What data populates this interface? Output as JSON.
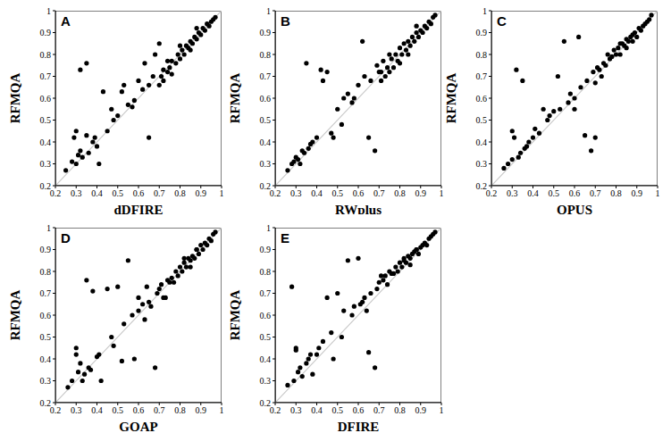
{
  "chart_data": [
    {
      "type": "scatter",
      "panel_label": "A",
      "x_label": "dDFIRE",
      "y_label": "RFMQA",
      "color": "#000000",
      "marker": "circle",
      "xlim": [
        0.2,
        1
      ],
      "ylim": [
        0.2,
        1
      ],
      "xticks": [
        0.2,
        0.3,
        0.4,
        0.5,
        0.6,
        0.7,
        0.8,
        0.9,
        1
      ],
      "yticks": [
        0.2,
        0.3,
        0.4,
        0.5,
        0.6,
        0.7,
        0.8,
        0.9,
        1
      ],
      "x": [
        0.25,
        0.28,
        0.3,
        0.31,
        0.32,
        0.33,
        0.35,
        0.36,
        0.38,
        0.4,
        0.29,
        0.3,
        0.32,
        0.35,
        0.39,
        0.41,
        0.43,
        0.45,
        0.47,
        0.48,
        0.5,
        0.52,
        0.53,
        0.55,
        0.57,
        0.58,
        0.6,
        0.62,
        0.63,
        0.65,
        0.65,
        0.67,
        0.68,
        0.7,
        0.71,
        0.72,
        0.74,
        0.75,
        0.76,
        0.78,
        0.79,
        0.8,
        0.81,
        0.82,
        0.83,
        0.84,
        0.85,
        0.86,
        0.87,
        0.88,
        0.89,
        0.9,
        0.91,
        0.92,
        0.93,
        0.94,
        0.95,
        0.96,
        0.97,
        0.72,
        0.76,
        0.8,
        0.85,
        0.88,
        0.7,
        0.74
      ],
      "values": [
        0.27,
        0.31,
        0.3,
        0.34,
        0.73,
        0.33,
        0.76,
        0.35,
        0.4,
        0.38,
        0.42,
        0.45,
        0.36,
        0.43,
        0.42,
        0.3,
        0.63,
        0.45,
        0.55,
        0.5,
        0.52,
        0.63,
        0.66,
        0.57,
        0.56,
        0.59,
        0.68,
        0.64,
        0.76,
        0.42,
        0.66,
        0.7,
        0.8,
        0.85,
        0.7,
        0.73,
        0.72,
        0.74,
        0.77,
        0.76,
        0.8,
        0.78,
        0.82,
        0.8,
        0.84,
        0.83,
        0.86,
        0.85,
        0.88,
        0.87,
        0.9,
        0.89,
        0.92,
        0.91,
        0.94,
        0.93,
        0.95,
        0.96,
        0.97,
        0.68,
        0.71,
        0.84,
        0.82,
        0.92,
        0.66,
        0.77
      ]
    },
    {
      "type": "scatter",
      "panel_label": "B",
      "x_label": "RWplus",
      "y_label": "RFMQA",
      "color": "#000000",
      "marker": "circle",
      "xlim": [
        0.2,
        1
      ],
      "ylim": [
        0.2,
        1
      ],
      "xticks": [
        0.2,
        0.3,
        0.4,
        0.5,
        0.6,
        0.7,
        0.8,
        0.9,
        1
      ],
      "yticks": [
        0.2,
        0.3,
        0.4,
        0.5,
        0.6,
        0.7,
        0.8,
        0.9,
        1
      ],
      "x": [
        0.26,
        0.28,
        0.3,
        0.31,
        0.33,
        0.35,
        0.36,
        0.38,
        0.4,
        0.42,
        0.29,
        0.32,
        0.34,
        0.37,
        0.43,
        0.45,
        0.47,
        0.48,
        0.5,
        0.52,
        0.53,
        0.55,
        0.57,
        0.58,
        0.6,
        0.62,
        0.63,
        0.65,
        0.66,
        0.68,
        0.69,
        0.7,
        0.71,
        0.72,
        0.74,
        0.75,
        0.76,
        0.78,
        0.79,
        0.8,
        0.81,
        0.82,
        0.83,
        0.84,
        0.85,
        0.86,
        0.87,
        0.88,
        0.89,
        0.9,
        0.91,
        0.92,
        0.93,
        0.94,
        0.95,
        0.96,
        0.97,
        0.73,
        0.77,
        0.8,
        0.84,
        0.88,
        0.71,
        0.75
      ],
      "values": [
        0.27,
        0.3,
        0.33,
        0.32,
        0.36,
        0.76,
        0.37,
        0.4,
        0.42,
        0.73,
        0.31,
        0.3,
        0.35,
        0.39,
        0.68,
        0.72,
        0.44,
        0.42,
        0.55,
        0.48,
        0.6,
        0.62,
        0.58,
        0.6,
        0.66,
        0.86,
        0.7,
        0.42,
        0.68,
        0.36,
        0.75,
        0.72,
        0.72,
        0.77,
        0.74,
        0.8,
        0.78,
        0.8,
        0.77,
        0.83,
        0.8,
        0.85,
        0.82,
        0.86,
        0.84,
        0.88,
        0.86,
        0.9,
        0.88,
        0.91,
        0.9,
        0.93,
        0.92,
        0.95,
        0.94,
        0.97,
        0.98,
        0.7,
        0.74,
        0.76,
        0.8,
        0.93,
        0.68,
        0.72
      ]
    },
    {
      "type": "scatter",
      "panel_label": "C",
      "x_label": "OPUS",
      "y_label": "RFMQA",
      "color": "#000000",
      "marker": "circle",
      "xlim": [
        0.2,
        1
      ],
      "ylim": [
        0.2,
        1
      ],
      "xticks": [
        0.2,
        0.3,
        0.4,
        0.5,
        0.6,
        0.7,
        0.8,
        0.9,
        1
      ],
      "yticks": [
        0.2,
        0.3,
        0.4,
        0.5,
        0.6,
        0.7,
        0.8,
        0.9,
        1
      ],
      "x": [
        0.26,
        0.28,
        0.3,
        0.31,
        0.32,
        0.33,
        0.35,
        0.36,
        0.38,
        0.4,
        0.3,
        0.34,
        0.37,
        0.41,
        0.43,
        0.45,
        0.47,
        0.48,
        0.5,
        0.52,
        0.53,
        0.55,
        0.57,
        0.58,
        0.6,
        0.62,
        0.63,
        0.65,
        0.66,
        0.68,
        0.69,
        0.7,
        0.71,
        0.72,
        0.74,
        0.75,
        0.76,
        0.78,
        0.79,
        0.8,
        0.81,
        0.82,
        0.83,
        0.84,
        0.85,
        0.86,
        0.87,
        0.88,
        0.89,
        0.9,
        0.91,
        0.92,
        0.93,
        0.94,
        0.95,
        0.96,
        0.97,
        0.73,
        0.77,
        0.82,
        0.85,
        0.88,
        0.7,
        0.6
      ],
      "values": [
        0.28,
        0.3,
        0.45,
        0.42,
        0.73,
        0.33,
        0.68,
        0.37,
        0.4,
        0.42,
        0.32,
        0.35,
        0.38,
        0.46,
        0.44,
        0.55,
        0.5,
        0.52,
        0.54,
        0.7,
        0.55,
        0.86,
        0.58,
        0.62,
        0.6,
        0.88,
        0.65,
        0.43,
        0.68,
        0.36,
        0.72,
        0.42,
        0.74,
        0.73,
        0.76,
        0.75,
        0.8,
        0.79,
        0.82,
        0.8,
        0.83,
        0.8,
        0.85,
        0.84,
        0.87,
        0.86,
        0.88,
        0.89,
        0.9,
        0.88,
        0.92,
        0.91,
        0.93,
        0.94,
        0.95,
        0.96,
        0.98,
        0.7,
        0.78,
        0.85,
        0.83,
        0.86,
        0.67,
        0.55
      ]
    },
    {
      "type": "scatter",
      "panel_label": "D",
      "x_label": "GOAP",
      "y_label": "RFMQA",
      "color": "#000000",
      "marker": "circle",
      "xlim": [
        0.2,
        1
      ],
      "ylim": [
        0.2,
        1
      ],
      "xticks": [
        0.2,
        0.3,
        0.4,
        0.5,
        0.6,
        0.7,
        0.8,
        0.9,
        1
      ],
      "yticks": [
        0.2,
        0.3,
        0.4,
        0.5,
        0.6,
        0.7,
        0.8,
        0.9,
        1
      ],
      "x": [
        0.26,
        0.28,
        0.3,
        0.31,
        0.33,
        0.34,
        0.35,
        0.36,
        0.38,
        0.4,
        0.3,
        0.32,
        0.37,
        0.41,
        0.42,
        0.45,
        0.47,
        0.48,
        0.5,
        0.52,
        0.53,
        0.55,
        0.57,
        0.58,
        0.6,
        0.62,
        0.63,
        0.65,
        0.66,
        0.68,
        0.69,
        0.7,
        0.71,
        0.72,
        0.74,
        0.75,
        0.76,
        0.78,
        0.79,
        0.8,
        0.81,
        0.82,
        0.83,
        0.84,
        0.85,
        0.86,
        0.87,
        0.88,
        0.89,
        0.9,
        0.91,
        0.92,
        0.93,
        0.94,
        0.95,
        0.96,
        0.97,
        0.73,
        0.77,
        0.82,
        0.85,
        0.88,
        0.64,
        0.6
      ],
      "values": [
        0.27,
        0.3,
        0.45,
        0.34,
        0.3,
        0.33,
        0.76,
        0.36,
        0.71,
        0.41,
        0.42,
        0.38,
        0.35,
        0.42,
        0.3,
        0.72,
        0.5,
        0.46,
        0.73,
        0.39,
        0.56,
        0.85,
        0.6,
        0.4,
        0.62,
        0.65,
        0.58,
        0.66,
        0.64,
        0.36,
        0.7,
        0.72,
        0.74,
        0.68,
        0.76,
        0.75,
        0.77,
        0.8,
        0.78,
        0.82,
        0.8,
        0.84,
        0.82,
        0.86,
        0.85,
        0.87,
        0.86,
        0.9,
        0.88,
        0.92,
        0.9,
        0.93,
        0.92,
        0.95,
        0.94,
        0.97,
        0.98,
        0.68,
        0.75,
        0.86,
        0.82,
        0.9,
        0.73,
        0.68
      ]
    },
    {
      "type": "scatter",
      "panel_label": "E",
      "x_label": "DFIRE",
      "y_label": "RFMQA",
      "color": "#000000",
      "marker": "circle",
      "xlim": [
        0.2,
        1
      ],
      "ylim": [
        0.2,
        1
      ],
      "xticks": [
        0.2,
        0.3,
        0.4,
        0.5,
        0.6,
        0.7,
        0.8,
        0.9,
        1
      ],
      "yticks": [
        0.2,
        0.3,
        0.4,
        0.5,
        0.6,
        0.7,
        0.8,
        0.9,
        1
      ],
      "x": [
        0.26,
        0.28,
        0.29,
        0.3,
        0.31,
        0.33,
        0.35,
        0.36,
        0.38,
        0.4,
        0.3,
        0.32,
        0.37,
        0.41,
        0.43,
        0.45,
        0.47,
        0.48,
        0.5,
        0.52,
        0.53,
        0.55,
        0.57,
        0.58,
        0.6,
        0.62,
        0.63,
        0.65,
        0.66,
        0.68,
        0.69,
        0.7,
        0.71,
        0.72,
        0.74,
        0.75,
        0.76,
        0.78,
        0.79,
        0.8,
        0.81,
        0.82,
        0.83,
        0.84,
        0.85,
        0.86,
        0.87,
        0.88,
        0.89,
        0.9,
        0.91,
        0.92,
        0.93,
        0.94,
        0.95,
        0.96,
        0.97,
        0.73,
        0.77,
        0.82,
        0.85,
        0.88,
        0.64,
        0.61
      ],
      "values": [
        0.28,
        0.73,
        0.3,
        0.45,
        0.34,
        0.32,
        0.38,
        0.4,
        0.33,
        0.42,
        0.44,
        0.36,
        0.42,
        0.45,
        0.48,
        0.68,
        0.52,
        0.4,
        0.7,
        0.5,
        0.62,
        0.85,
        0.6,
        0.64,
        0.86,
        0.66,
        0.68,
        0.43,
        0.7,
        0.36,
        0.72,
        0.75,
        0.78,
        0.76,
        0.74,
        0.8,
        0.79,
        0.82,
        0.8,
        0.84,
        0.82,
        0.85,
        0.84,
        0.87,
        0.86,
        0.88,
        0.89,
        0.9,
        0.88,
        0.91,
        0.92,
        0.93,
        0.92,
        0.95,
        0.96,
        0.97,
        0.98,
        0.78,
        0.79,
        0.86,
        0.83,
        0.9,
        0.62,
        0.65
      ]
    }
  ]
}
